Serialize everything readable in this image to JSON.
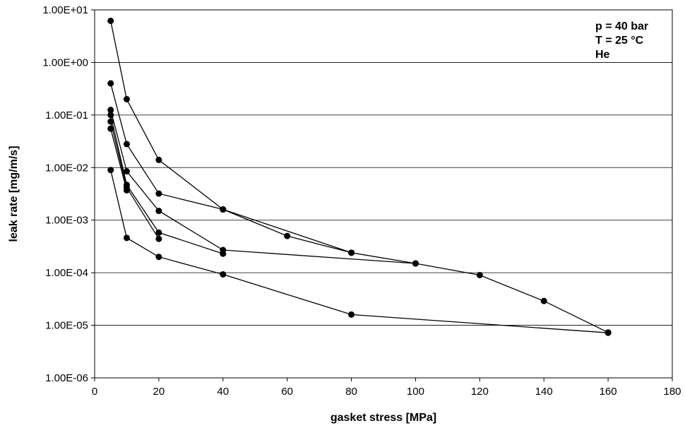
{
  "chart_data": {
    "type": "line",
    "xlabel": "gasket stress [MPa]",
    "ylabel": "leak rate [mg/m/s]",
    "xlim": [
      0,
      180
    ],
    "ylim": [
      1e-06,
      10
    ],
    "yscale": "log",
    "grid": "horizontal",
    "x_ticks": [
      "0",
      "20",
      "40",
      "60",
      "80",
      "100",
      "120",
      "140",
      "160",
      "180"
    ],
    "y_ticks": [
      "1.00E-06",
      "1.00E-05",
      "1.00E-04",
      "1.00E-03",
      "1.00E-02",
      "1.00E-01",
      "1.00E+00",
      "1.00E+01"
    ],
    "annotations": [
      "p = 40 bar",
      "T = 25 °C",
      "He"
    ],
    "line_color": "#000000",
    "series": [
      {
        "x": [
          5,
          10,
          20,
          40,
          60,
          80
        ],
        "y": [
          6.2,
          0.2,
          0.014,
          0.0016,
          0.0005,
          0.00024
        ]
      },
      {
        "x": [
          5,
          10,
          20,
          40,
          80,
          100,
          120,
          140,
          160
        ],
        "y": [
          0.4,
          0.028,
          0.0032,
          0.0016,
          0.00024,
          0.00015,
          9e-05,
          2.9e-05,
          7.3e-06
        ]
      },
      {
        "x": [
          5,
          10,
          20,
          40,
          100
        ],
        "y": [
          0.125,
          0.0085,
          0.0015,
          0.00027,
          0.00015
        ]
      },
      {
        "x": [
          5,
          10,
          20,
          40
        ],
        "y": [
          0.1,
          0.0047,
          0.00058,
          0.00023
        ]
      },
      {
        "x": [
          5,
          10,
          20
        ],
        "y": [
          0.075,
          0.0042,
          0.00044
        ]
      },
      {
        "x": [
          5,
          10
        ],
        "y": [
          0.055,
          0.0037
        ]
      },
      {
        "x": [
          5,
          10,
          20,
          40,
          80,
          160
        ],
        "y": [
          0.009,
          0.00046,
          0.0002,
          9.3e-05,
          1.6e-05,
          7.2e-06
        ]
      }
    ]
  }
}
